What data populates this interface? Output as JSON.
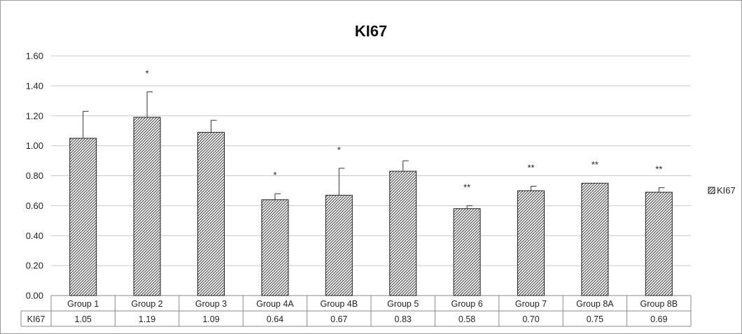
{
  "chart_data": {
    "type": "bar",
    "title": "KI67",
    "xlabel": "",
    "ylabel": "",
    "ylim": [
      0,
      1.6
    ],
    "y_ticks": [
      "0.00",
      "0.20",
      "0.40",
      "0.60",
      "0.80",
      "1.00",
      "1.20",
      "1.40",
      "1.60"
    ],
    "grid": true,
    "legend_position": "right",
    "categories": [
      "Group 1",
      "Group 2",
      "Group 3",
      "Group 4A",
      "Group 4B",
      "Group 5",
      "Group 6",
      "Group 7",
      "Group 8A",
      "Group 8B"
    ],
    "series": [
      {
        "name": "KI67",
        "values": [
          1.05,
          1.19,
          1.09,
          0.64,
          0.67,
          0.83,
          0.58,
          0.7,
          0.75,
          0.69
        ],
        "value_labels": [
          "1.05",
          "1.19",
          "1.09",
          "0.64",
          "0.67",
          "0.83",
          "0.58",
          "0.70",
          "0.75",
          "0.69"
        ],
        "error_upper": [
          1.23,
          1.36,
          1.17,
          0.68,
          0.85,
          0.9,
          0.6,
          0.73,
          0.75,
          0.72
        ],
        "significance": [
          "",
          "*",
          "",
          "*",
          "*",
          "",
          "**",
          "**",
          "**",
          "**"
        ]
      }
    ],
    "table_row_label": "KI67"
  },
  "colors": {
    "bar_fill": "#ffffff",
    "bar_pattern": "#444444",
    "bar_stroke": "#222222",
    "grid": "#c8c8c8",
    "axis": "#888888",
    "text": "#222222"
  }
}
